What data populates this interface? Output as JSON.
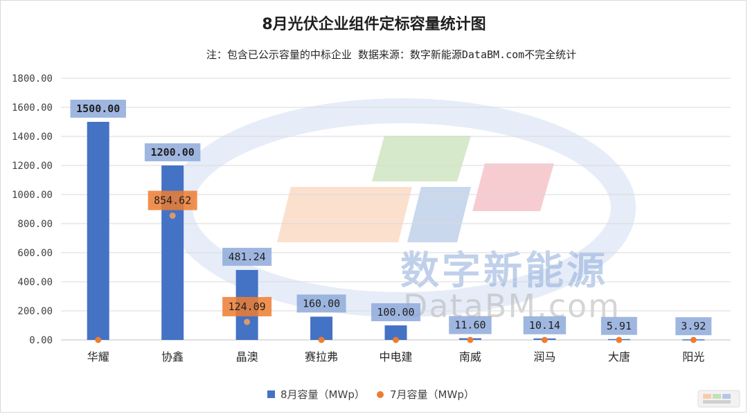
{
  "chart_data": {
    "type": "bar",
    "title": "8月光伏企业组件定标容量统计图",
    "subtitle": "注：包含已公示容量的中标企业 数据来源：数字新能源DataBM.com不完全统计",
    "categories": [
      "华耀",
      "协鑫",
      "晶澳",
      "赛拉弗",
      "中电建",
      "南威",
      "润马",
      "大唐",
      "阳光"
    ],
    "series": [
      {
        "name": "8月容量（MWp）",
        "kind": "bar",
        "color": "#4472c4",
        "values": [
          1500.0,
          1200.0,
          481.24,
          160.0,
          100.0,
          11.6,
          10.14,
          5.91,
          3.92
        ],
        "labels": [
          "1500.00",
          "1200.00",
          "481.24",
          "160.00",
          "100.00",
          "11.60",
          "10.14",
          "5.91",
          "3.92"
        ]
      },
      {
        "name": "7月容量（MWp）",
        "kind": "point",
        "color": "#ed7d31",
        "values": [
          0,
          854.62,
          124.09,
          0,
          0,
          0,
          0,
          0,
          0
        ],
        "labels": [
          "",
          "854.62",
          "124.09",
          "",
          "",
          "",
          "",
          "",
          ""
        ]
      }
    ],
    "ylim": [
      0,
      1800
    ],
    "yticks": [
      "0.00",
      "200.00",
      "400.00",
      "600.00",
      "800.00",
      "1000.00",
      "1200.00",
      "1400.00",
      "1600.00",
      "1800.00"
    ],
    "grid": true,
    "legend": "bottom"
  },
  "watermark": {
    "cn": "数字新能源",
    "en": "DataBM.com"
  }
}
